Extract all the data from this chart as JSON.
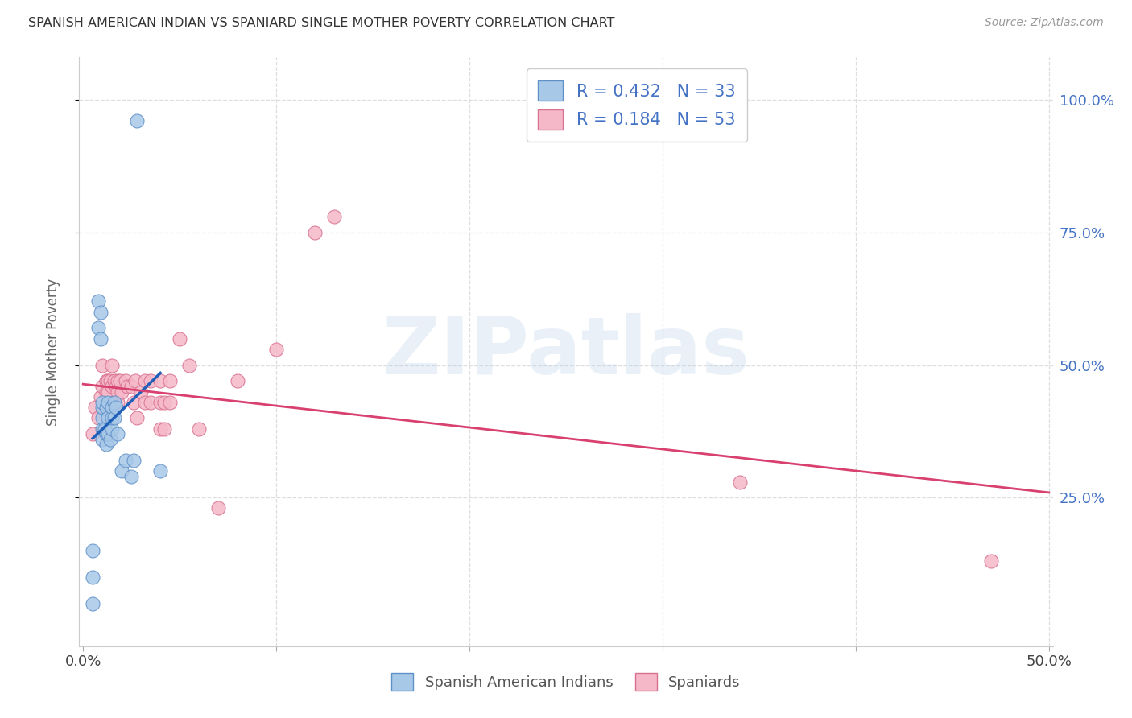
{
  "title": "SPANISH AMERICAN INDIAN VS SPANIARD SINGLE MOTHER POVERTY CORRELATION CHART",
  "source": "Source: ZipAtlas.com",
  "ylabel": "Single Mother Poverty",
  "xlim": [
    -0.002,
    0.502
  ],
  "ylim": [
    -0.03,
    1.08
  ],
  "xtick_positions": [
    0.0,
    0.1,
    0.2,
    0.3,
    0.4,
    0.5
  ],
  "xticklabels": [
    "0.0%",
    "",
    "",
    "",
    "",
    "50.0%"
  ],
  "ytick_positions": [
    0.25,
    0.5,
    0.75,
    1.0
  ],
  "ytick_labels": [
    "25.0%",
    "50.0%",
    "75.0%",
    "100.0%"
  ],
  "blue_R": "0.432",
  "blue_N": "33",
  "pink_R": "0.184",
  "pink_N": "53",
  "blue_scatter_color": "#A8C8E8",
  "blue_scatter_edge": "#6090C8",
  "blue_line_color": "#2060B8",
  "pink_scatter_color": "#F5B8C8",
  "pink_scatter_edge": "#D87090",
  "pink_line_color": "#D84070",
  "dash_color": "#BBBBBB",
  "watermark": "ZIPatlas",
  "legend_color": "#4472C4",
  "background_color": "#FFFFFF",
  "grid_color": "#DDDDDD",
  "blue_scatter_x": [
    0.005,
    0.005,
    0.005,
    0.008,
    0.008,
    0.009,
    0.009,
    0.01,
    0.01,
    0.01,
    0.01,
    0.01,
    0.011,
    0.012,
    0.012,
    0.012,
    0.013,
    0.013,
    0.013,
    0.014,
    0.015,
    0.015,
    0.015,
    0.016,
    0.016,
    0.017,
    0.018,
    0.02,
    0.022,
    0.025,
    0.026,
    0.04,
    0.028
  ],
  "blue_scatter_y": [
    0.05,
    0.1,
    0.15,
    0.57,
    0.62,
    0.55,
    0.6,
    0.36,
    0.38,
    0.4,
    0.42,
    0.43,
    0.38,
    0.35,
    0.37,
    0.42,
    0.37,
    0.4,
    0.43,
    0.36,
    0.38,
    0.4,
    0.42,
    0.4,
    0.43,
    0.42,
    0.37,
    0.3,
    0.32,
    0.29,
    0.32,
    0.3,
    0.96
  ],
  "pink_scatter_x": [
    0.005,
    0.006,
    0.008,
    0.009,
    0.01,
    0.01,
    0.011,
    0.012,
    0.012,
    0.013,
    0.013,
    0.013,
    0.013,
    0.014,
    0.014,
    0.015,
    0.015,
    0.016,
    0.016,
    0.017,
    0.018,
    0.018,
    0.018,
    0.019,
    0.02,
    0.022,
    0.023,
    0.025,
    0.026,
    0.027,
    0.028,
    0.03,
    0.032,
    0.032,
    0.035,
    0.035,
    0.04,
    0.04,
    0.04,
    0.042,
    0.042,
    0.045,
    0.045,
    0.05,
    0.055,
    0.06,
    0.07,
    0.08,
    0.1,
    0.12,
    0.13,
    0.34,
    0.47
  ],
  "pink_scatter_y": [
    0.37,
    0.42,
    0.4,
    0.44,
    0.46,
    0.5,
    0.38,
    0.45,
    0.47,
    0.37,
    0.42,
    0.45,
    0.47,
    0.42,
    0.47,
    0.46,
    0.5,
    0.43,
    0.47,
    0.46,
    0.43,
    0.45,
    0.47,
    0.47,
    0.45,
    0.47,
    0.46,
    0.46,
    0.43,
    0.47,
    0.4,
    0.45,
    0.43,
    0.47,
    0.43,
    0.47,
    0.38,
    0.43,
    0.47,
    0.38,
    0.43,
    0.43,
    0.47,
    0.55,
    0.5,
    0.38,
    0.23,
    0.47,
    0.53,
    0.75,
    0.78,
    0.28,
    0.13
  ]
}
